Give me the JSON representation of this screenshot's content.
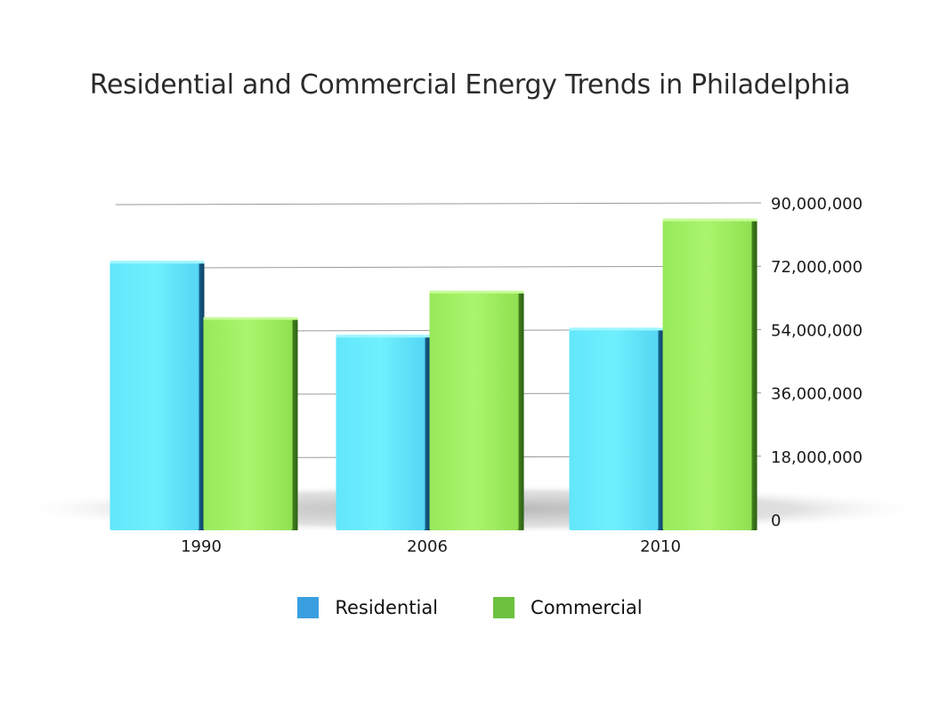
{
  "chart_data": {
    "type": "bar",
    "title": "Residential and Commercial Energy Trends in Philadelphia",
    "categories": [
      "1990",
      "2006",
      "2010"
    ],
    "series": [
      {
        "name": "Residential",
        "values": [
          73500000,
          52500000,
          54500000
        ],
        "color": "#5ee8f9"
      },
      {
        "name": "Commercial",
        "values": [
          57500000,
          65000000,
          85500000
        ],
        "color": "#9ef05c"
      }
    ],
    "yticks": [
      "0",
      "18,000,000",
      "36,000,000",
      "54,000,000",
      "72,000,000",
      "90,000,000"
    ],
    "ylim": [
      0,
      90000000
    ],
    "yaxis_side": "right",
    "grid": true,
    "legend_position": "bottom",
    "legend": [
      {
        "label": "Residential",
        "color": "#3a9fdf"
      },
      {
        "label": "Commercial",
        "color": "#6cc23e"
      }
    ]
  }
}
